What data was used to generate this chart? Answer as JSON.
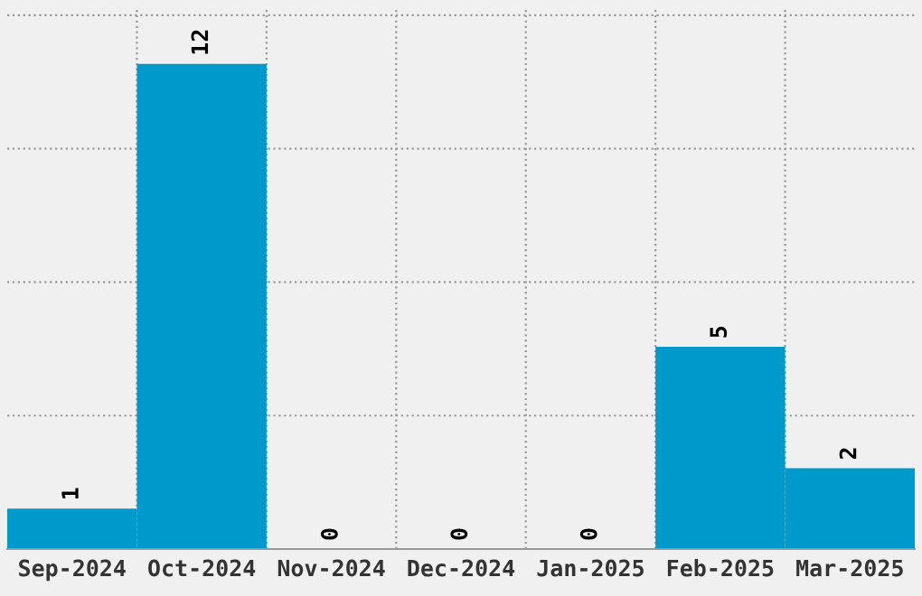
{
  "chart_data": {
    "type": "bar",
    "categories": [
      "Sep-2024",
      "Oct-2024",
      "Nov-2024",
      "Dec-2024",
      "Jan-2025",
      "Feb-2025",
      "Mar-2025"
    ],
    "values": [
      1,
      12,
      0,
      0,
      0,
      5,
      2
    ],
    "color": "#0099cc",
    "ylim": [
      0,
      13.4
    ],
    "yticks": [
      {
        "value": 3.3,
        "label": null
      },
      {
        "value": 6.6,
        "label": null
      },
      {
        "value": 9.9,
        "label": null
      },
      {
        "value": 13.2,
        "label": null
      }
    ],
    "grid": true,
    "data_labels": true
  }
}
